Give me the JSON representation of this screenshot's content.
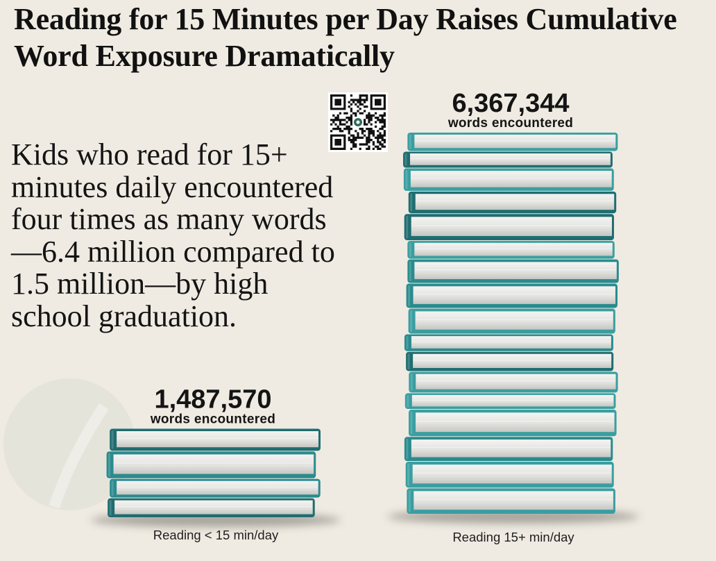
{
  "chart_data": {
    "type": "bar",
    "title": "Reading for 15 Minutes per Day Raises Cumulative Word Exposure Dramatically",
    "annotation": "Kids who read for 15+ minutes daily encountered four times as many words—6.4 million compared to 1.5 million—by high school graduation.",
    "categories": [
      "Reading < 15 min/day",
      "Reading 15+ min/day"
    ],
    "values": [
      1487570,
      6367344
    ],
    "data_labels": [
      "1,487,570",
      "6,367,344"
    ],
    "value_unit_label": "words encountered",
    "xlabel": "",
    "ylabel": "",
    "grid": false
  },
  "colors": {
    "background": "#efebe2",
    "text": "#121212",
    "book_cover": "#2a8b8e",
    "book_cover_dark": "#1f6d70",
    "book_cover_light": "#3a9ea0",
    "pages_light": "#f4f4f2",
    "pages_dark": "#c5c6c3",
    "shadow": "#5e5d59"
  },
  "icons": {
    "qr": "qr-code"
  }
}
